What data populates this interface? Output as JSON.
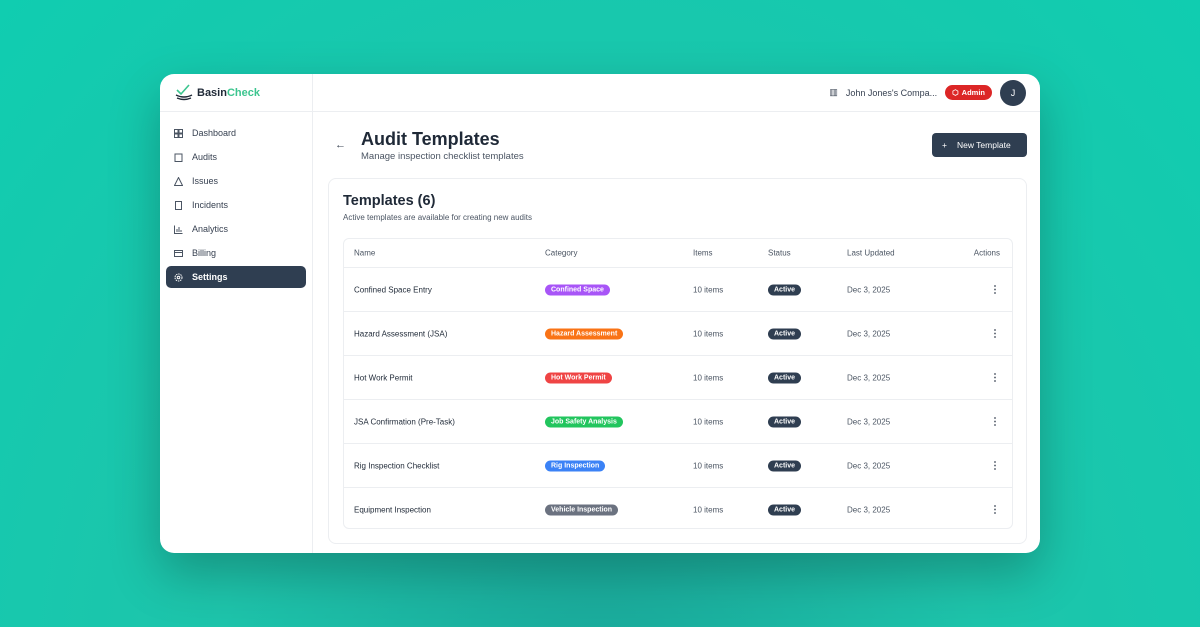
{
  "brand": {
    "part1": "Basin",
    "part2": "Check"
  },
  "sidebar": {
    "items": [
      {
        "label": "Dashboard",
        "icon": "dashboard-icon"
      },
      {
        "label": "Audits",
        "icon": "clipboard-icon"
      },
      {
        "label": "Issues",
        "icon": "warning-icon"
      },
      {
        "label": "Incidents",
        "icon": "file-icon"
      },
      {
        "label": "Analytics",
        "icon": "chart-icon"
      },
      {
        "label": "Billing",
        "icon": "card-icon"
      },
      {
        "label": "Settings",
        "icon": "gear-icon",
        "active": true
      }
    ]
  },
  "header": {
    "company": "John Jones's Compa...",
    "role": "Admin",
    "avatar": "J"
  },
  "page": {
    "title": "Audit Templates",
    "subtitle": "Manage inspection checklist templates",
    "new_button": "New Template"
  },
  "panel": {
    "title": "Templates (6)",
    "subtitle": "Active templates are available for creating new audits"
  },
  "table": {
    "columns": [
      "Name",
      "Category",
      "Items",
      "Status",
      "Last Updated",
      "Actions"
    ],
    "rows": [
      {
        "name": "Confined Space Entry",
        "category": "Confined Space",
        "color": "#a855f7",
        "items": "10 items",
        "status": "Active",
        "updated": "Dec 3, 2025"
      },
      {
        "name": "Hazard Assessment (JSA)",
        "category": "Hazard Assessment",
        "color": "#f97316",
        "items": "10 items",
        "status": "Active",
        "updated": "Dec 3, 2025"
      },
      {
        "name": "Hot Work Permit",
        "category": "Hot Work Permit",
        "color": "#ef4444",
        "items": "10 items",
        "status": "Active",
        "updated": "Dec 3, 2025"
      },
      {
        "name": "JSA Confirmation (Pre-Task)",
        "category": "Job Safety Analysis",
        "color": "#22c55e",
        "items": "10 items",
        "status": "Active",
        "updated": "Dec 3, 2025"
      },
      {
        "name": "Rig Inspection Checklist",
        "category": "Rig Inspection",
        "color": "#3b82f6",
        "items": "10 items",
        "status": "Active",
        "updated": "Dec 3, 2025"
      },
      {
        "name": "Equipment Inspection",
        "category": "Vehicle Inspection",
        "color": "#6b7280",
        "items": "10 items",
        "status": "Active",
        "updated": "Dec 3, 2025"
      }
    ]
  },
  "colors": {
    "primary": "#2f3e51",
    "brand_green": "#3cc58f",
    "admin_red": "#dc2626"
  }
}
